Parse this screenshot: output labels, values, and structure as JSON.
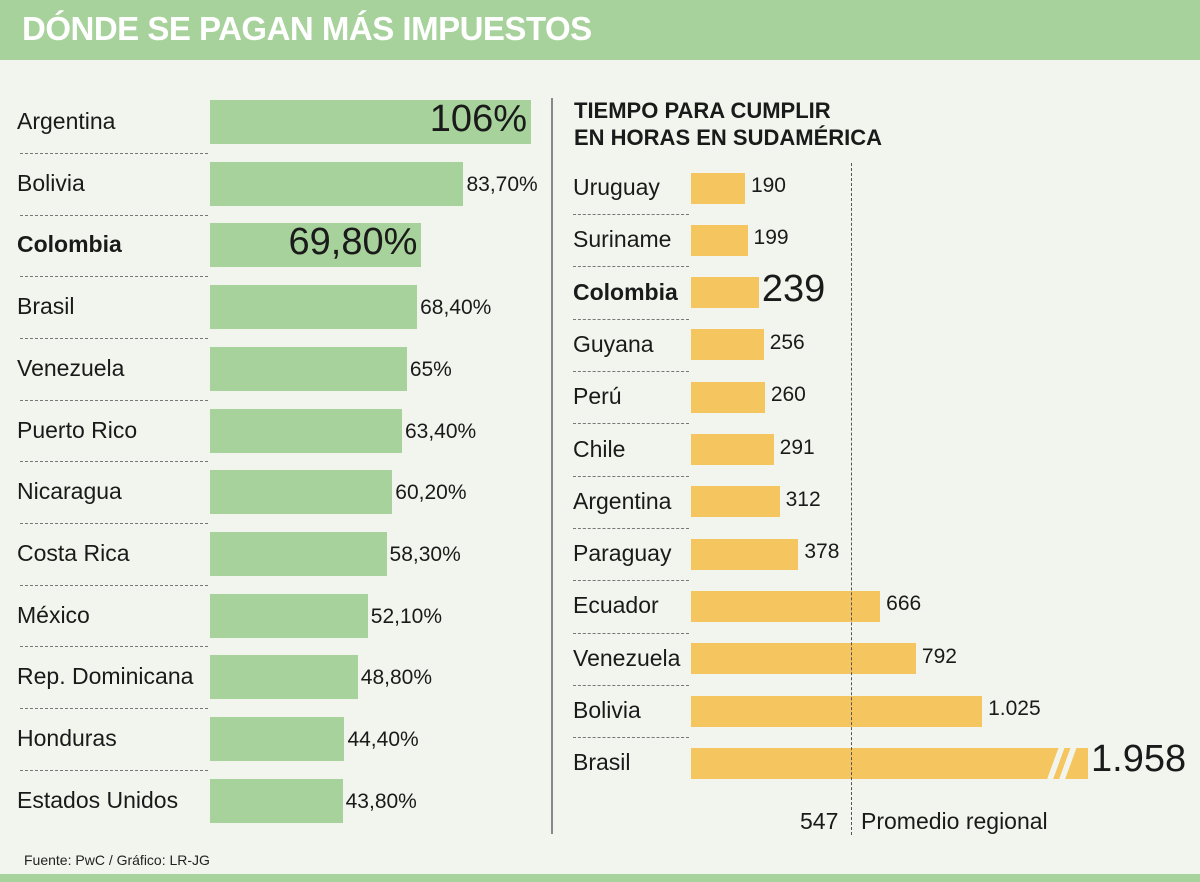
{
  "title": "DÓNDE SE PAGAN MÁS IMPUESTOS",
  "source": "Fuente: PwC / Gráfico: LR-JG",
  "colors": {
    "green": "#a8d29c",
    "yellow": "#f5c55f",
    "background": "#f2f5ee"
  },
  "chart_data": [
    {
      "type": "bar",
      "orientation": "horizontal",
      "title": "",
      "categories": [
        "Argentina",
        "Bolivia",
        "Colombia",
        "Brasil",
        "Venezuela",
        "Puerto Rico",
        "Nicaragua",
        "Costa Rica",
        "México",
        "Rep. Dominicana",
        "Honduras",
        "Estados Unidos"
      ],
      "values": [
        106,
        83.7,
        69.8,
        68.4,
        65,
        63.4,
        60.2,
        58.3,
        52.1,
        48.8,
        44.4,
        43.8
      ],
      "value_labels": [
        "106%",
        "83,70%",
        "69,80%",
        "68,40%",
        "65%",
        "63,40%",
        "60,20%",
        "58,30%",
        "52,10%",
        "48,80%",
        "44,40%",
        "43,80%"
      ],
      "highlight": [
        "Colombia"
      ],
      "xlim": [
        0,
        106
      ]
    },
    {
      "type": "bar",
      "orientation": "horizontal",
      "title": "TIEMPO PARA CUMPLIR",
      "subtitle": "EN HORAS EN SUDAMÉRICA",
      "categories": [
        "Uruguay",
        "Suriname",
        "Colombia",
        "Guyana",
        "Perú",
        "Chile",
        "Argentina",
        "Paraguay",
        "Ecuador",
        "Venezuela",
        "Bolivia",
        "Brasil"
      ],
      "values": [
        190,
        199,
        239,
        256,
        260,
        291,
        312,
        378,
        666,
        792,
        1025,
        1958
      ],
      "value_labels": [
        "190",
        "199",
        "239",
        "256",
        "260",
        "291",
        "312",
        "378",
        "666",
        "792",
        "1.025",
        "1.958"
      ],
      "highlight": [
        "Colombia"
      ],
      "broken_axis": [
        "Brasil"
      ],
      "reference_line": {
        "value": 547,
        "value_label": "547",
        "label": "Promedio regional"
      }
    }
  ]
}
